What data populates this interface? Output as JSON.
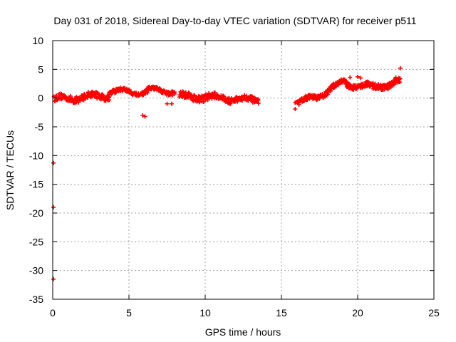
{
  "chart_data": {
    "type": "scatter",
    "title": "Day 031 of 2018, Sidereal Day-to-day VTEC variation (SDTVAR) for receiver p511",
    "xlabel": "GPS time / hours",
    "ylabel": "SDTVAR / TECUs",
    "xlim": [
      0,
      25
    ],
    "ylim": [
      -35,
      10
    ],
    "xticks": [
      0,
      5,
      10,
      15,
      20,
      25
    ],
    "yticks": [
      10,
      5,
      0,
      -5,
      -10,
      -15,
      -20,
      -25,
      -30,
      -35
    ],
    "grid": true,
    "marker": "plus",
    "series": [
      {
        "name": "SDTVAR",
        "color": "#ff0000",
        "segments": [
          {
            "x_start": 0.1,
            "x_end": 3.7,
            "y_start": -0.2,
            "y_end": 0.5,
            "spread": 1.1
          },
          {
            "x_start": 3.7,
            "x_end": 6.2,
            "y_start": 1.2,
            "y_end": 1.0,
            "spread": 0.7
          },
          {
            "x_start": 6.2,
            "x_end": 8.0,
            "y_start": 1.4,
            "y_end": 1.1,
            "spread": 0.7
          },
          {
            "x_start": 8.3,
            "x_end": 10.3,
            "y_start": 0.3,
            "y_end": 0.2,
            "spread": 1.2
          },
          {
            "x_start": 10.3,
            "x_end": 13.5,
            "y_start": 0.1,
            "y_end": -0.4,
            "spread": 1.0
          },
          {
            "x_start": 16.0,
            "x_end": 17.5,
            "y_start": -0.8,
            "y_end": 0.3,
            "spread": 0.8
          },
          {
            "x_start": 17.5,
            "x_end": 19.2,
            "y_start": 0.5,
            "y_end": 3.0,
            "spread": 0.9
          },
          {
            "x_start": 19.2,
            "x_end": 21.0,
            "y_start": 2.4,
            "y_end": 2.0,
            "spread": 0.9
          },
          {
            "x_start": 21.0,
            "x_end": 22.8,
            "y_start": 1.8,
            "y_end": 2.8,
            "spread": 1.0
          }
        ],
        "points": [
          [
            0.05,
            -11.3
          ],
          [
            0.05,
            -19.0
          ],
          [
            0.05,
            -31.5
          ],
          [
            5.9,
            -3.0
          ],
          [
            6.05,
            -3.2
          ],
          [
            7.5,
            -1.0
          ],
          [
            7.8,
            -1.0
          ],
          [
            15.9,
            -0.8
          ],
          [
            15.9,
            -1.9
          ],
          [
            22.8,
            5.2
          ],
          [
            19.5,
            3.6
          ],
          [
            20.0,
            3.7
          ],
          [
            20.2,
            3.5
          ],
          [
            22.5,
            3.6
          ]
        ]
      }
    ]
  }
}
